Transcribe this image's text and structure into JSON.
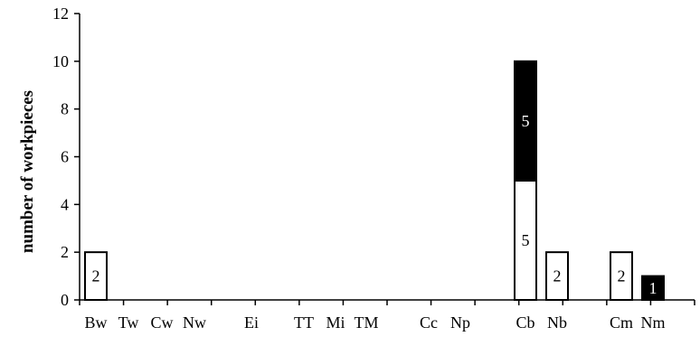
{
  "chart_data": {
    "type": "bar",
    "stacked": true,
    "title": "",
    "xlabel": "",
    "ylabel": "number of workpieces",
    "ylim": [
      0,
      12
    ],
    "yticks": [
      0,
      2,
      4,
      6,
      8,
      10,
      12
    ],
    "grid": false,
    "legend": "none",
    "categories": [
      "Bw",
      "Tw",
      "Cw",
      "Nw",
      "Ei",
      "TT",
      "Mi",
      "TM",
      "Cc",
      "Np",
      "Cb",
      "Nb",
      "Cm",
      "Nm"
    ],
    "series": [
      {
        "color": "#ffffff",
        "values": [
          2,
          0,
          0,
          0,
          0,
          0,
          0,
          0,
          0,
          0,
          5,
          2,
          2,
          0
        ],
        "labels": [
          "2",
          "",
          "",
          "",
          "",
          "",
          "",
          "",
          "",
          "",
          "5",
          "2",
          "2",
          ""
        ]
      },
      {
        "color": "#000000",
        "values": [
          0,
          0,
          0,
          0,
          0,
          0,
          0,
          0,
          0,
          0,
          5,
          0,
          0,
          1
        ],
        "labels": [
          "",
          "",
          "",
          "",
          "",
          "",
          "",
          "",
          "",
          "",
          "5",
          "",
          "",
          "1"
        ]
      }
    ]
  }
}
